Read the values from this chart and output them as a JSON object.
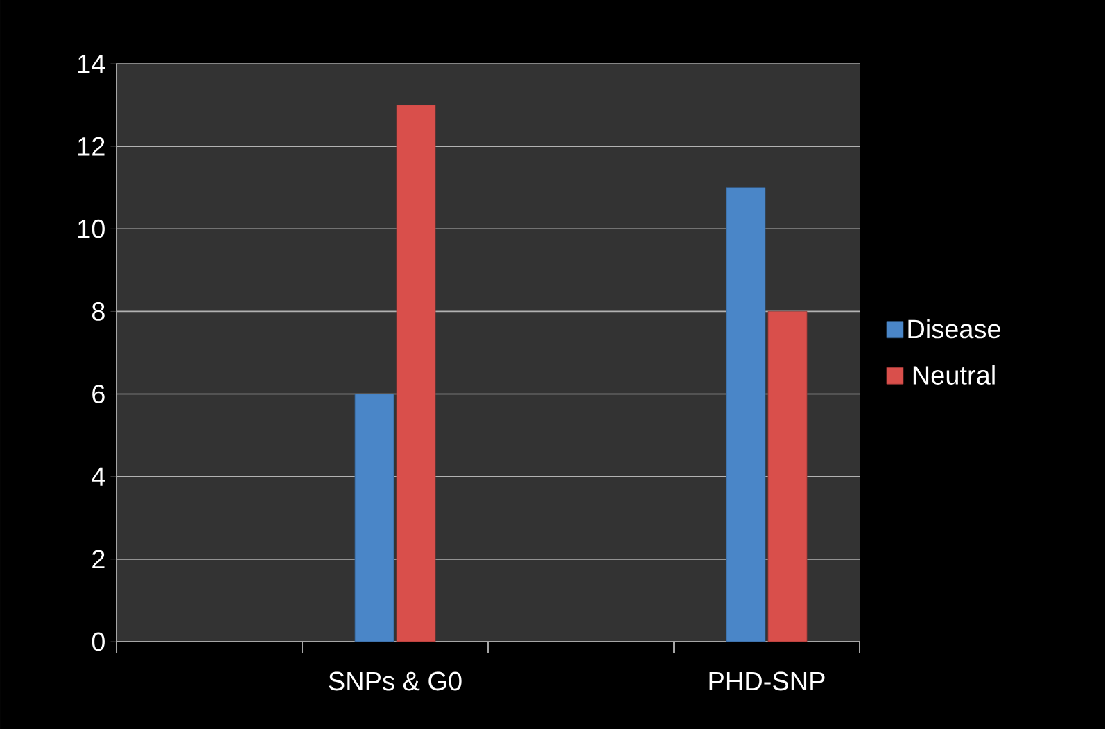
{
  "chart_data": {
    "type": "bar",
    "categories": [
      null,
      "SNPs & G0",
      null,
      "PHD-SNP"
    ],
    "series": [
      {
        "name": "Disease",
        "color": "#4a86c8",
        "values": [
          null,
          6,
          null,
          11
        ]
      },
      {
        "name": "Neutral",
        "color": "#d94f4b",
        "values": [
          null,
          13,
          null,
          8
        ]
      }
    ],
    "ylim": [
      0,
      14
    ],
    "yticks": [
      0,
      2,
      4,
      6,
      8,
      10,
      12,
      14
    ],
    "grid": "y",
    "legend": "right"
  }
}
